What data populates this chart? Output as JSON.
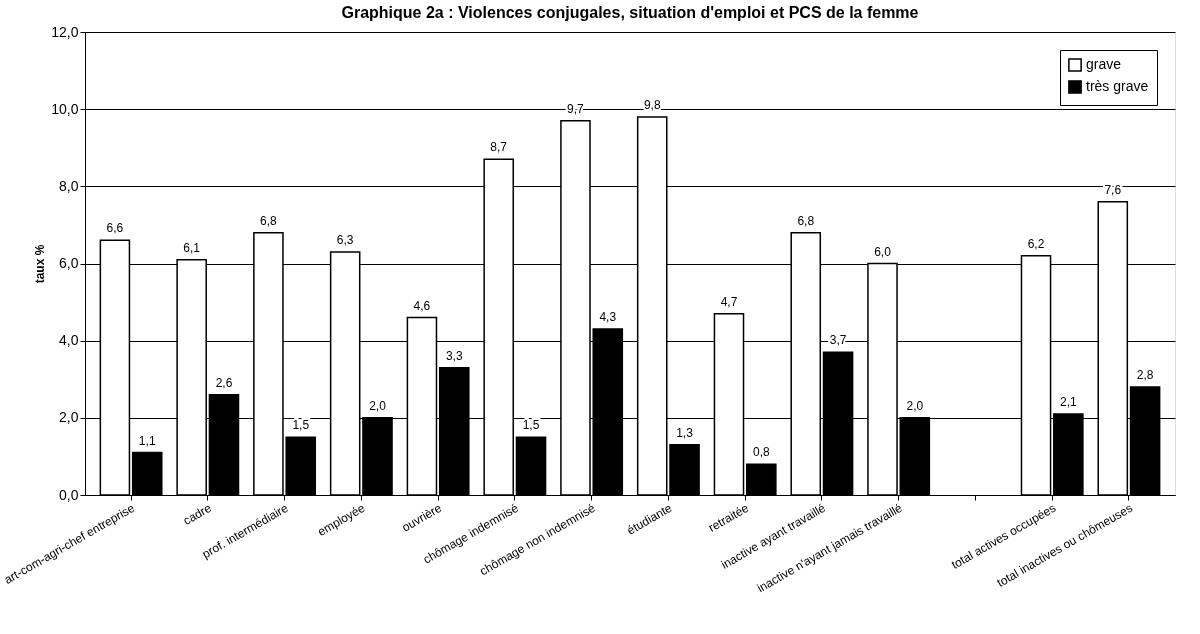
{
  "chart_data": {
    "type": "bar",
    "title": "Graphique 2a : Violences conjugales, situation d'emploi et PCS de la femme",
    "ylabel": "taux %",
    "categories": [
      "art-com-agri-chef entreprise",
      "cadre",
      "prof. intermédiaire",
      "employée",
      "ouvrière",
      "chômage indemnisé",
      "chômage non indemnisé",
      "étudiante",
      "retraitée",
      "inactive ayant travaillé",
      "inactive n'ayant jamais travaillé",
      null,
      "total actives occupées",
      "total inactives ou chômeuses"
    ],
    "series": [
      {
        "name": "grave",
        "color": "#ffffff",
        "values": [
          6.6,
          6.1,
          6.8,
          6.3,
          4.6,
          8.7,
          9.7,
          9.8,
          4.7,
          6.8,
          6.0,
          null,
          6.2,
          7.6
        ],
        "value_labels": [
          "6,6",
          "6,1",
          "6,8",
          "6,3",
          "4,6",
          "8,7",
          "9,7",
          "9,8",
          "4,7",
          "6,8",
          "6,0",
          null,
          "6,2",
          "7,6"
        ]
      },
      {
        "name": "très grave",
        "color": "#000000",
        "values": [
          1.1,
          2.6,
          1.5,
          2.0,
          3.3,
          1.5,
          4.3,
          1.3,
          0.8,
          3.7,
          2.0,
          null,
          2.1,
          2.8
        ],
        "value_labels": [
          "1,1",
          "2,6",
          "1,5",
          "2,0",
          "3,3",
          "1,5",
          "4,3",
          "1,3",
          "0,8",
          "3,7",
          "2,0",
          null,
          "2,1",
          "2,8"
        ]
      }
    ],
    "ylim": [
      0,
      12
    ],
    "yticks": [
      {
        "value": 0,
        "label": "0,0"
      },
      {
        "value": 2,
        "label": "2,0"
      },
      {
        "value": 4,
        "label": "4,0"
      },
      {
        "value": 6,
        "label": "6,0"
      },
      {
        "value": 8,
        "label": "8,0"
      },
      {
        "value": 10,
        "label": "10,0"
      },
      {
        "value": 12,
        "label": "12,0"
      }
    ],
    "grid": "y",
    "legend": "top right"
  }
}
